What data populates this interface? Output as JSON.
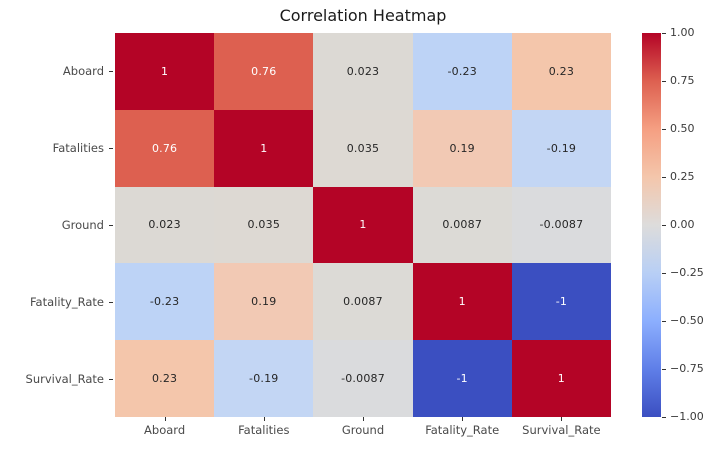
{
  "title": "Correlation Heatmap",
  "chart_data": {
    "type": "heatmap",
    "title": "Correlation Heatmap",
    "colormap": "coolwarm",
    "vmin": -1,
    "vmax": 1,
    "categories": [
      "Aboard",
      "Fatalities",
      "Ground",
      "Fatality_Rate",
      "Survival_Rate"
    ],
    "matrix": [
      [
        1,
        0.76,
        0.023,
        -0.23,
        0.23
      ],
      [
        0.76,
        1,
        0.035,
        0.19,
        -0.19
      ],
      [
        0.023,
        0.035,
        1,
        0.0087,
        -0.0087
      ],
      [
        -0.23,
        0.19,
        0.0087,
        1,
        -1
      ],
      [
        0.23,
        -0.19,
        -0.0087,
        -1,
        1
      ]
    ],
    "cell_labels": [
      [
        "1",
        "0.76",
        "0.023",
        "-0.23",
        "0.23"
      ],
      [
        "0.76",
        "1",
        "0.035",
        "0.19",
        "-0.19"
      ],
      [
        "0.023",
        "0.035",
        "1",
        "0.0087",
        "-0.0087"
      ],
      [
        "-0.23",
        "0.19",
        "0.0087",
        "1",
        "-1"
      ],
      [
        "0.23",
        "-0.19",
        "-0.0087",
        "-1",
        "1"
      ]
    ],
    "cell_colors": [
      [
        "#b40426",
        "#dd6050",
        "#dcd9d4",
        "#bdd3f6",
        "#f4c6ab"
      ],
      [
        "#dd6050",
        "#b40426",
        "#ddd9d3",
        "#f2c9b4",
        "#c3d6f4"
      ],
      [
        "#dcd9d4",
        "#ddd9d3",
        "#b40426",
        "#dcdad6",
        "#dadbdd"
      ],
      [
        "#bdd3f6",
        "#f2c9b4",
        "#dcdad6",
        "#b40426",
        "#3b4fc1"
      ],
      [
        "#f4c6ab",
        "#c3d6f4",
        "#dadbdd",
        "#3b4fc1",
        "#b40426"
      ]
    ],
    "cell_text_colors": [
      [
        "light",
        "light",
        "dark",
        "dark",
        "dark"
      ],
      [
        "light",
        "light",
        "dark",
        "dark",
        "dark"
      ],
      [
        "dark",
        "dark",
        "light",
        "dark",
        "dark"
      ],
      [
        "dark",
        "dark",
        "dark",
        "light",
        "light"
      ],
      [
        "dark",
        "dark",
        "dark",
        "light",
        "light"
      ]
    ],
    "legend_position": "right-colorbar",
    "colorbar_ticks": [
      "1.00",
      "0.75",
      "0.50",
      "0.25",
      "0.00",
      "−0.25",
      "−0.50",
      "−0.75",
      "−1.00"
    ],
    "colorbar_gradient": [
      "#b40426",
      "#dd6050",
      "#f59f82",
      "#f4c6ab",
      "#dddcdb",
      "#b8cff5",
      "#8caffe",
      "#5f7fe8",
      "#3b4fc1"
    ]
  },
  "colors": {
    "background": "#ffffff",
    "annot_dark": "#262626",
    "annot_light": "#ffffff",
    "axis_label": "#4a4a4a",
    "max_red": "#b40426",
    "min_blue": "#3b4fc1"
  }
}
